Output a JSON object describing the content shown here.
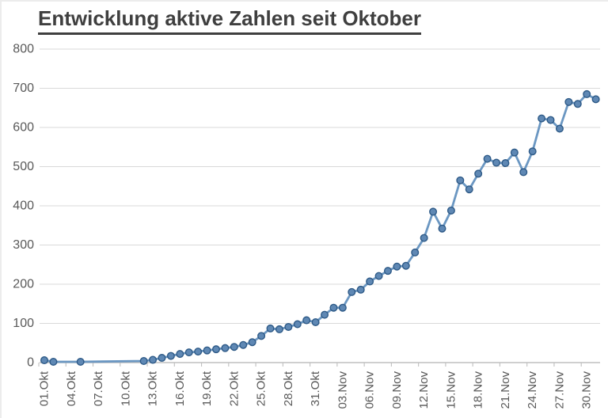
{
  "title": "Entwicklung aktive Zahlen seit Oktober",
  "chart_data": {
    "type": "line",
    "title": "Entwicklung aktive Zahlen seit Oktober",
    "xlabel": "",
    "ylabel": "",
    "ylim": [
      0,
      800
    ],
    "y_ticks": [
      0,
      100,
      200,
      300,
      400,
      500,
      600,
      700,
      800
    ],
    "x_tick_labels": [
      "01.Okt",
      "04.Okt",
      "07.Okt",
      "10.Okt",
      "13.Okt",
      "16.Okt",
      "19.Okt",
      "22.Okt",
      "25.Okt",
      "28.Okt",
      "31.Okt",
      "03.Nov",
      "06.Nov",
      "09.Nov",
      "12.Nov",
      "15.Nov",
      "18.Nov",
      "21.Nov",
      "24.Nov",
      "27.Nov",
      "30.Nov"
    ],
    "x_tick_step_days": 3,
    "x_range_days": 62,
    "grid": "horizontal",
    "legend": "none",
    "series": [
      {
        "name": "aktive Zahlen",
        "points": [
          {
            "date": "01.Okt",
            "day": 1,
            "value": 6
          },
          {
            "date": "02.Okt",
            "day": 2,
            "value": 2
          },
          {
            "date": "05.Okt",
            "day": 5,
            "value": 2
          },
          {
            "date": "12.Okt",
            "day": 12,
            "value": 4
          },
          {
            "date": "13.Okt",
            "day": 13,
            "value": 7
          },
          {
            "date": "14.Okt",
            "day": 14,
            "value": 12
          },
          {
            "date": "15.Okt",
            "day": 15,
            "value": 17
          },
          {
            "date": "16.Okt",
            "day": 16,
            "value": 22
          },
          {
            "date": "17.Okt",
            "day": 17,
            "value": 26
          },
          {
            "date": "18.Okt",
            "day": 18,
            "value": 28
          },
          {
            "date": "19.Okt",
            "day": 19,
            "value": 31
          },
          {
            "date": "20.Okt",
            "day": 20,
            "value": 34
          },
          {
            "date": "21.Okt",
            "day": 21,
            "value": 37
          },
          {
            "date": "22.Okt",
            "day": 22,
            "value": 40
          },
          {
            "date": "23.Okt",
            "day": 23,
            "value": 45
          },
          {
            "date": "24.Okt",
            "day": 24,
            "value": 52
          },
          {
            "date": "25.Okt",
            "day": 25,
            "value": 68
          },
          {
            "date": "26.Okt",
            "day": 26,
            "value": 87
          },
          {
            "date": "27.Okt",
            "day": 27,
            "value": 85
          },
          {
            "date": "28.Okt",
            "day": 28,
            "value": 91
          },
          {
            "date": "29.Okt",
            "day": 29,
            "value": 98
          },
          {
            "date": "30.Okt",
            "day": 30,
            "value": 108
          },
          {
            "date": "31.Okt",
            "day": 31,
            "value": 103
          },
          {
            "date": "01.Nov",
            "day": 32,
            "value": 122
          },
          {
            "date": "02.Nov",
            "day": 33,
            "value": 140
          },
          {
            "date": "03.Nov",
            "day": 34,
            "value": 140
          },
          {
            "date": "04.Nov",
            "day": 35,
            "value": 180
          },
          {
            "date": "05.Nov",
            "day": 36,
            "value": 186
          },
          {
            "date": "06.Nov",
            "day": 37,
            "value": 207
          },
          {
            "date": "07.Nov",
            "day": 38,
            "value": 221
          },
          {
            "date": "08.Nov",
            "day": 39,
            "value": 234
          },
          {
            "date": "09.Nov",
            "day": 40,
            "value": 245
          },
          {
            "date": "10.Nov",
            "day": 41,
            "value": 247
          },
          {
            "date": "11.Nov",
            "day": 42,
            "value": 281
          },
          {
            "date": "12.Nov",
            "day": 43,
            "value": 318
          },
          {
            "date": "13.Nov",
            "day": 44,
            "value": 385
          },
          {
            "date": "14.Nov",
            "day": 45,
            "value": 342
          },
          {
            "date": "15.Nov",
            "day": 46,
            "value": 388
          },
          {
            "date": "16.Nov",
            "day": 47,
            "value": 465
          },
          {
            "date": "17.Nov",
            "day": 48,
            "value": 442
          },
          {
            "date": "18.Nov",
            "day": 49,
            "value": 482
          },
          {
            "date": "19.Nov",
            "day": 50,
            "value": 520
          },
          {
            "date": "20.Nov",
            "day": 51,
            "value": 510
          },
          {
            "date": "21.Nov",
            "day": 52,
            "value": 509
          },
          {
            "date": "22.Nov",
            "day": 53,
            "value": 536
          },
          {
            "date": "23.Nov",
            "day": 54,
            "value": 486
          },
          {
            "date": "24.Nov",
            "day": 55,
            "value": 539
          },
          {
            "date": "25.Nov",
            "day": 56,
            "value": 623
          },
          {
            "date": "26.Nov",
            "day": 57,
            "value": 619
          },
          {
            "date": "27.Nov",
            "day": 58,
            "value": 597
          },
          {
            "date": "28.Nov",
            "day": 59,
            "value": 665
          },
          {
            "date": "29.Nov",
            "day": 60,
            "value": 660
          },
          {
            "date": "30.Nov",
            "day": 61,
            "value": 685
          },
          {
            "date": "01.Dez",
            "day": 62,
            "value": 672
          }
        ]
      }
    ]
  },
  "colors": {
    "line": "#6b97c2",
    "marker_fill": "#5f88b4",
    "marker_edge": "#2e5a87",
    "gridline": "#d9d9d9",
    "axis_line": "#bfbfbf",
    "tick_text": "#595959",
    "title_text": "#3f3f3f",
    "background": "#ffffff"
  }
}
